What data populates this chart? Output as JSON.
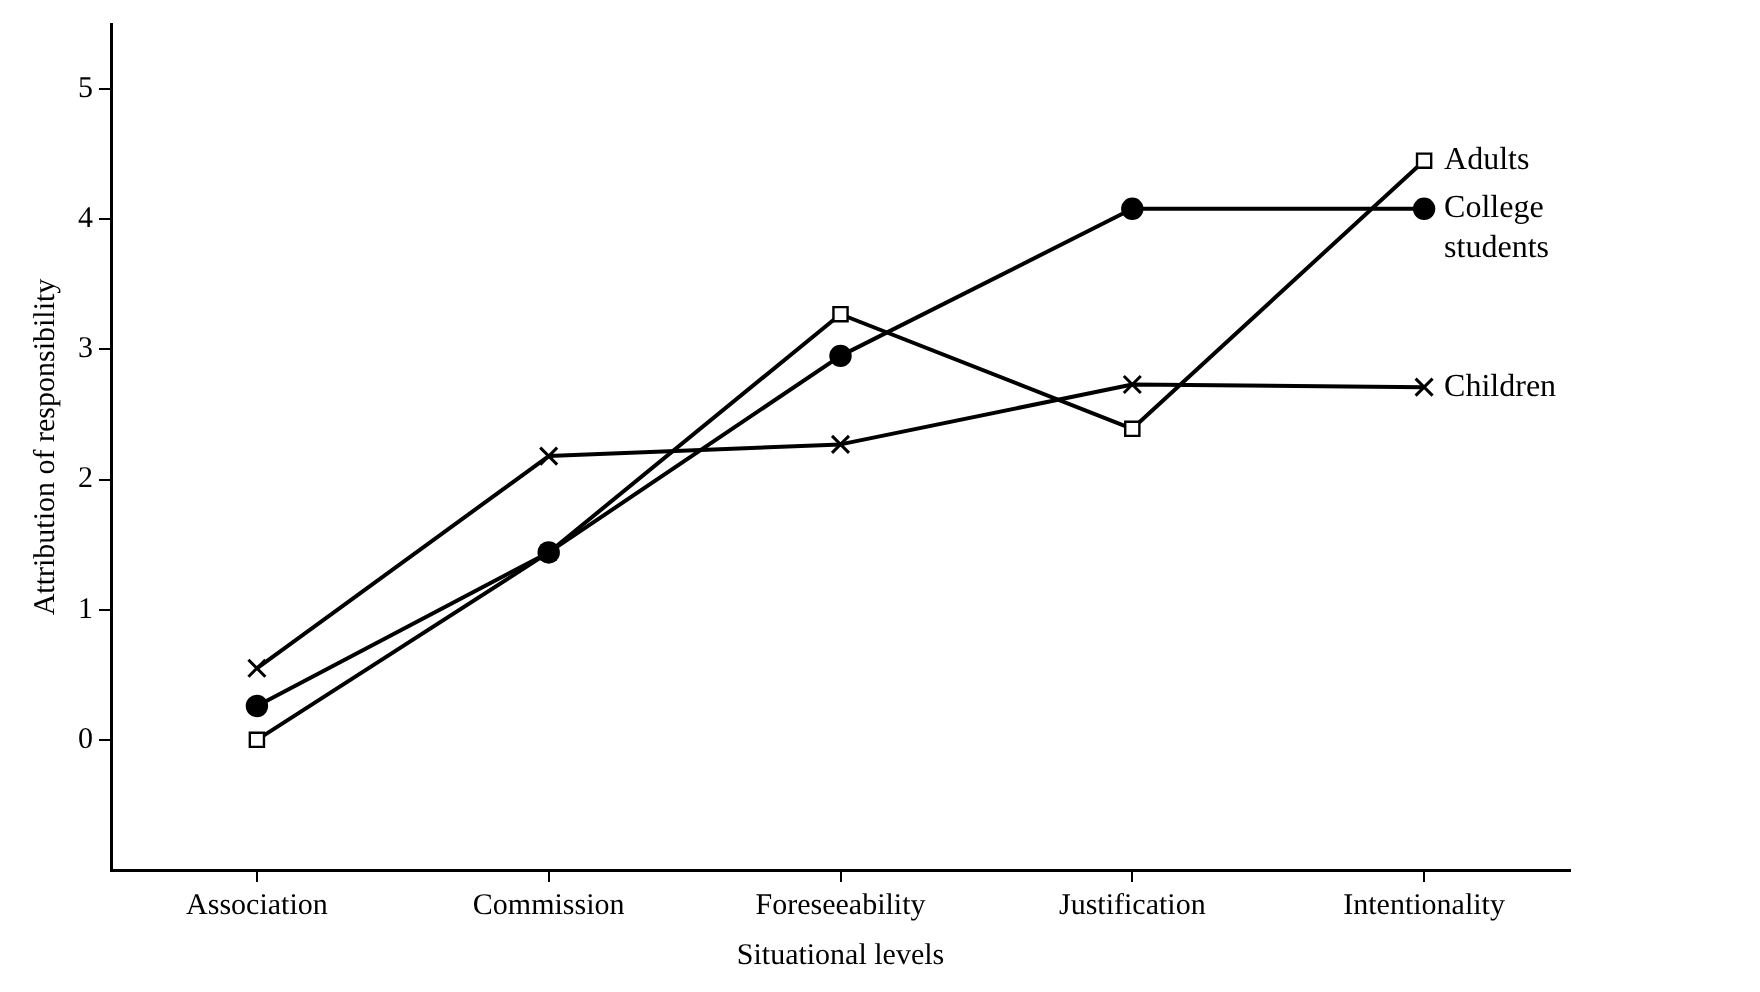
{
  "chart_data": {
    "type": "line",
    "xlabel": "Situational levels",
    "ylabel": "Attribution of responsibility",
    "categories": [
      "Association",
      "Commission",
      "Foreseeability",
      "Justification",
      "Intentionality"
    ],
    "series": [
      {
        "name": "Adults",
        "color": "#000000",
        "marker": "square",
        "values": [
          0,
          1.44,
          3.27,
          2.39,
          4.45
        ]
      },
      {
        "name": "College students",
        "color": "#000000",
        "marker": "circle",
        "values": [
          0.26,
          1.44,
          2.95,
          4.08,
          4.08
        ]
      },
      {
        "name": "Children",
        "color": "#000000",
        "marker": "cross",
        "values": [
          0.55,
          2.18,
          2.27,
          2.73,
          2.71
        ]
      }
    ],
    "ylim": [
      -1,
      5.5
    ],
    "yticks": [
      0,
      1,
      2,
      3,
      4,
      5
    ],
    "grid": false,
    "legend": false,
    "line_style": "solid"
  }
}
